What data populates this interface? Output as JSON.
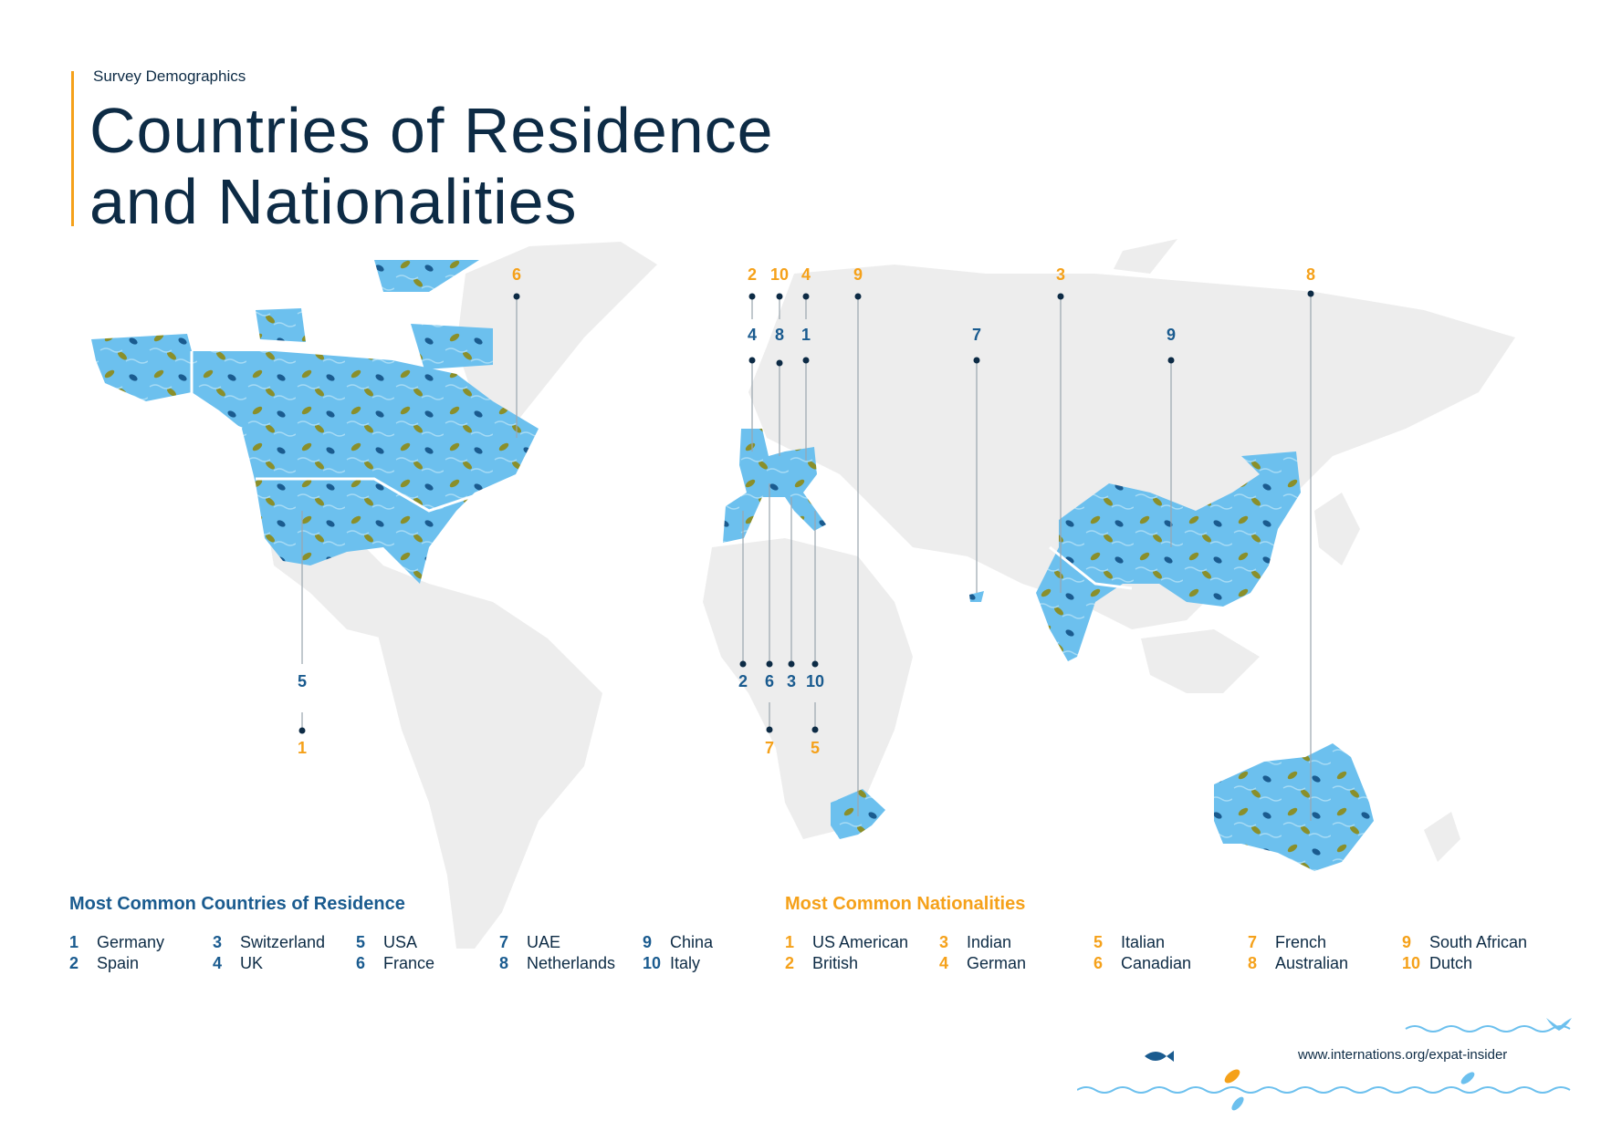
{
  "header": {
    "subtitle": "Survey Demographics",
    "title_line1": "Countries of Residence",
    "title_line2": "and Nationalities"
  },
  "map_labels": [
    {
      "id": "north-america-residence",
      "residence": "5",
      "nationality": "1"
    },
    {
      "id": "canada-nationality",
      "nationality": "6"
    },
    {
      "id": "uk",
      "residence": "4",
      "nationality": "2"
    },
    {
      "id": "netherlands",
      "residence": "8",
      "nationality": "10"
    },
    {
      "id": "germany",
      "residence": "1",
      "nationality": "4"
    },
    {
      "id": "south-africa",
      "nationality": "9"
    },
    {
      "id": "uae",
      "residence": "7"
    },
    {
      "id": "india",
      "nationality": "3"
    },
    {
      "id": "china",
      "residence": "9"
    },
    {
      "id": "australia",
      "nationality": "8"
    },
    {
      "id": "spain",
      "residence": "2"
    },
    {
      "id": "france",
      "residence": "6",
      "nationality": "7"
    },
    {
      "id": "switzerland",
      "residence": "3"
    },
    {
      "id": "italy",
      "residence": "10",
      "nationality": "5"
    }
  ],
  "legend_residence": {
    "title": "Most Common Countries of Residence",
    "items": [
      {
        "rank": "1",
        "name": "Germany"
      },
      {
        "rank": "2",
        "name": "Spain"
      },
      {
        "rank": "3",
        "name": "Switzerland"
      },
      {
        "rank": "4",
        "name": "UK"
      },
      {
        "rank": "5",
        "name": "USA"
      },
      {
        "rank": "6",
        "name": "France"
      },
      {
        "rank": "7",
        "name": "UAE"
      },
      {
        "rank": "8",
        "name": "Netherlands"
      },
      {
        "rank": "9",
        "name": "China"
      },
      {
        "rank": "10",
        "name": "Italy"
      }
    ]
  },
  "legend_nationalities": {
    "title": "Most Common Nationalities",
    "items": [
      {
        "rank": "1",
        "name": "US American"
      },
      {
        "rank": "2",
        "name": "British"
      },
      {
        "rank": "3",
        "name": "Indian"
      },
      {
        "rank": "4",
        "name": "German"
      },
      {
        "rank": "5",
        "name": "Italian"
      },
      {
        "rank": "6",
        "name": "Canadian"
      },
      {
        "rank": "7",
        "name": "French"
      },
      {
        "rank": "8",
        "name": "Australian"
      },
      {
        "rank": "9",
        "name": "South African"
      },
      {
        "rank": "10",
        "name": "Dutch"
      }
    ]
  },
  "footer": {
    "url": "www.internations.org/expat-insider"
  },
  "colors": {
    "land": "#ededed",
    "highlight": "#6cc0ee",
    "navy": "#0d2b45",
    "blue": "#1a5b8f",
    "orange": "#f5a11a",
    "leaf": "#8a8f2a"
  }
}
